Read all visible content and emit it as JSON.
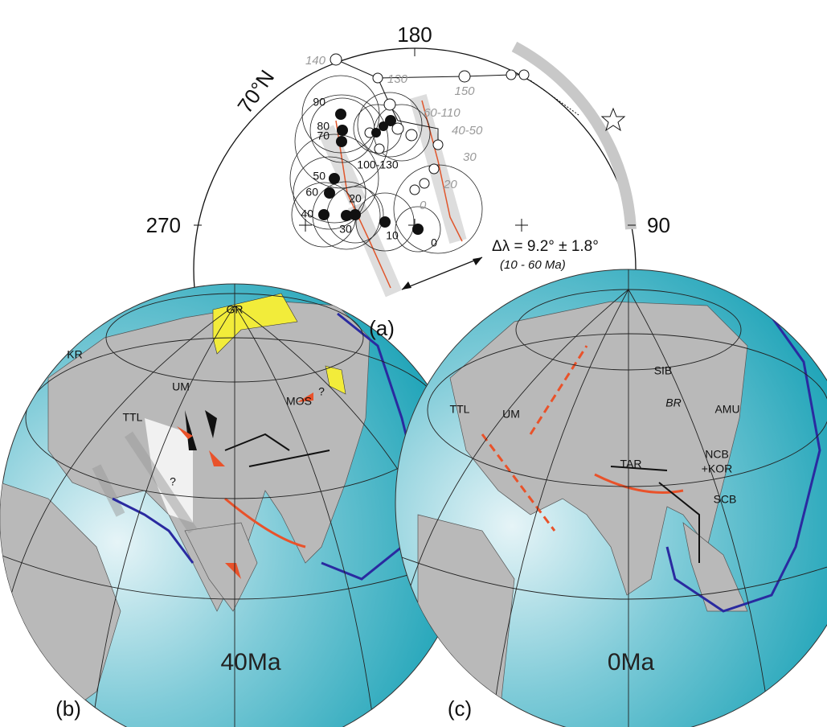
{
  "panel_a": {
    "label": "(a)",
    "azimuths": [
      "180",
      "270",
      "90"
    ],
    "latitude": "70°N",
    "closed_poles": [
      "90",
      "80",
      "70",
      "50",
      "60",
      "40",
      "30",
      "20",
      "10",
      "0",
      "100-130"
    ],
    "open_poles": [
      "140",
      "130",
      "150",
      "60-110",
      "40-50",
      "30",
      "20",
      "0"
    ],
    "delta": "Δλ = 9.2° ± 1.8°",
    "delta_range": "(10 - 60 Ma)"
  },
  "panel_b": {
    "label": "(b)",
    "age": "40Ma",
    "labels": [
      "GR",
      "KR",
      "UM",
      "TTL",
      "MOS",
      "?",
      "?"
    ]
  },
  "panel_c": {
    "label": "(c)",
    "age": "0Ma",
    "labels": [
      "TTL",
      "UM",
      "SIB",
      "BR",
      "AMU",
      "TAR",
      "NCB",
      "+KOR",
      "SCB"
    ]
  }
}
